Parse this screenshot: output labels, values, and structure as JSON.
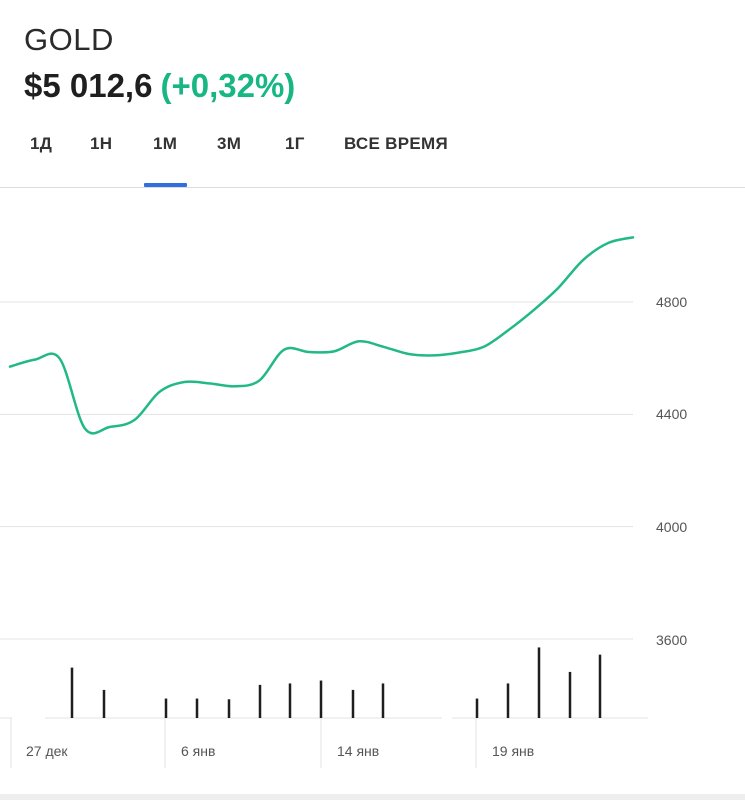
{
  "header": {
    "ticker": "GOLD",
    "price": "$5 012,6",
    "change": "(+0,32%)"
  },
  "tabs": [
    {
      "label": "1Д"
    },
    {
      "label": "1Н"
    },
    {
      "label": "1М",
      "active": true
    },
    {
      "label": "3М"
    },
    {
      "label": "1Г"
    },
    {
      "label": "ВСЕ ВРЕМЯ"
    }
  ],
  "colors": {
    "line": "#22b987",
    "accent": "#2f6fe0",
    "positive": "#17b683"
  },
  "chart_data": {
    "type": "line",
    "y_ticks": [
      "4800",
      "4400",
      "4000",
      "3600"
    ],
    "x_ticks": [
      "27 дек",
      "6 янв",
      "14 янв",
      "19 янв"
    ],
    "ylim": [
      3300,
      5150
    ],
    "grid": true,
    "series": [
      {
        "values": [
          4570,
          4595,
          4598,
          4350,
          4355,
          4380,
          4480,
          4515,
          4510,
          4500,
          4520,
          4630,
          4622,
          4624,
          4660,
          4640,
          4615,
          4610,
          4620,
          4640,
          4700,
          4770,
          4850,
          4950,
          5010,
          5030
        ]
      }
    ],
    "volume": [
      0.7,
      0.39,
      0.27,
      0.27,
      0.26,
      0.46,
      0.48,
      0.52,
      0.39,
      0.48,
      0.27,
      0.48,
      0.98,
      0.64,
      0.88
    ]
  }
}
